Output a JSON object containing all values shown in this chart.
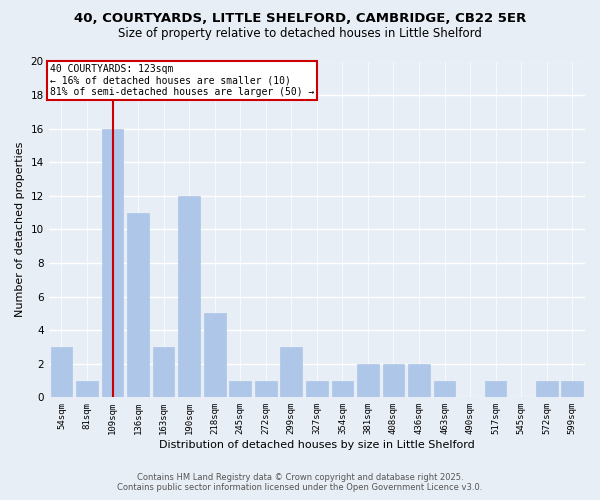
{
  "title1": "40, COURTYARDS, LITTLE SHELFORD, CAMBRIDGE, CB22 5ER",
  "title2": "Size of property relative to detached houses in Little Shelford",
  "xlabel": "Distribution of detached houses by size in Little Shelford",
  "ylabel": "Number of detached properties",
  "categories": [
    "54sqm",
    "81sqm",
    "109sqm",
    "136sqm",
    "163sqm",
    "190sqm",
    "218sqm",
    "245sqm",
    "272sqm",
    "299sqm",
    "327sqm",
    "354sqm",
    "381sqm",
    "408sqm",
    "436sqm",
    "463sqm",
    "490sqm",
    "517sqm",
    "545sqm",
    "572sqm",
    "599sqm"
  ],
  "values": [
    3,
    1,
    16,
    11,
    3,
    12,
    5,
    1,
    1,
    3,
    1,
    1,
    2,
    2,
    2,
    1,
    0,
    1,
    0,
    1,
    1
  ],
  "bar_color": "#aec6e8",
  "bar_edge_color": "#aec6e8",
  "vline_x_idx": 2,
  "vline_color": "#cc0000",
  "annotation_title": "40 COURTYARDS: 123sqm",
  "annotation_line1": "← 16% of detached houses are smaller (10)",
  "annotation_line2": "81% of semi-detached houses are larger (50) →",
  "annotation_box_color": "#ffffff",
  "annotation_box_edge": "#cc0000",
  "ylim": [
    0,
    20
  ],
  "yticks": [
    0,
    2,
    4,
    6,
    8,
    10,
    12,
    14,
    16,
    18,
    20
  ],
  "footer1": "Contains HM Land Registry data © Crown copyright and database right 2025.",
  "footer2": "Contains public sector information licensed under the Open Government Licence v3.0.",
  "bg_color": "#e8eef5",
  "grid_color": "#ffffff",
  "title1_fontsize": 9.5,
  "title2_fontsize": 8.5
}
